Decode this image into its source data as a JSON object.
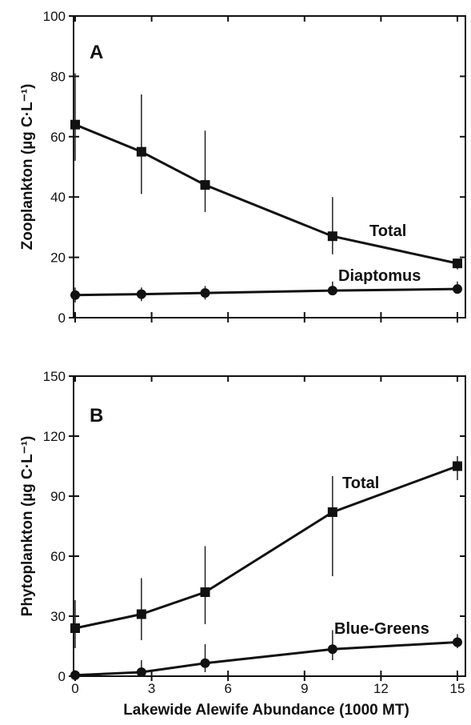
{
  "chart_data": [
    {
      "type": "line",
      "panel_letter": "A",
      "ylabel": "Zooplankton (µg C·L⁻¹)",
      "xlabel": "",
      "xlim": [
        0,
        15
      ],
      "ylim": [
        0,
        100
      ],
      "x_ticks": [
        0,
        3,
        6,
        9,
        12,
        15
      ],
      "y_ticks": [
        0,
        20,
        40,
        60,
        80,
        100
      ],
      "x_tick_labels": [
        "",
        "",
        "",
        "",
        "",
        ""
      ],
      "y_tick_labels": [
        "0",
        "20",
        "40",
        "60",
        "80",
        "100"
      ],
      "grid": false,
      "legend": "none (series labeled inline)",
      "series": [
        {
          "name": "Total",
          "marker": "square",
          "x": [
            0,
            2.6,
            5.1,
            10.1,
            15
          ],
          "y": [
            64,
            55,
            44,
            27,
            18
          ],
          "err_low": [
            52,
            41,
            35,
            21,
            16
          ],
          "err_high": [
            81,
            74,
            62,
            40,
            19
          ]
        },
        {
          "name": "Diaptomus",
          "marker": "circle",
          "x": [
            0,
            2.6,
            5.1,
            10.1,
            15
          ],
          "y": [
            7.5,
            7.8,
            8.2,
            9,
            9.5
          ],
          "err_low": [
            5,
            5.5,
            6,
            7.5,
            8
          ],
          "err_high": [
            10,
            10,
            10.5,
            12,
            12
          ]
        }
      ]
    },
    {
      "type": "line",
      "panel_letter": "B",
      "ylabel": "Phytoplankton (µg C·L⁻¹)",
      "xlabel": "Lakewide Alewife Abundance (1000 MT)",
      "xlim": [
        0,
        15
      ],
      "ylim": [
        0,
        150
      ],
      "x_ticks": [
        0,
        3,
        6,
        9,
        12,
        15
      ],
      "y_ticks": [
        0,
        30,
        60,
        90,
        120,
        150
      ],
      "x_tick_labels": [
        "0",
        "3",
        "6",
        "9",
        "12",
        "15"
      ],
      "y_tick_labels": [
        "0",
        "30",
        "60",
        "90",
        "120",
        "150"
      ],
      "grid": false,
      "legend": "none (series labeled inline)",
      "series": [
        {
          "name": "Total",
          "marker": "square",
          "x": [
            0,
            2.6,
            5.1,
            10.1,
            15
          ],
          "y": [
            24,
            31,
            42,
            82,
            105
          ],
          "err_low": [
            14,
            18,
            26,
            50,
            98
          ],
          "err_high": [
            38,
            49,
            65,
            100,
            110
          ]
        },
        {
          "name": "Blue-Greens",
          "marker": "circle",
          "x": [
            0,
            2.6,
            5.1,
            10.1,
            15
          ],
          "y": [
            0.5,
            2,
            6.5,
            13.5,
            17
          ],
          "err_low": [
            0,
            0,
            2,
            8,
            14
          ],
          "err_high": [
            3,
            8,
            16,
            23,
            21
          ]
        }
      ]
    }
  ]
}
